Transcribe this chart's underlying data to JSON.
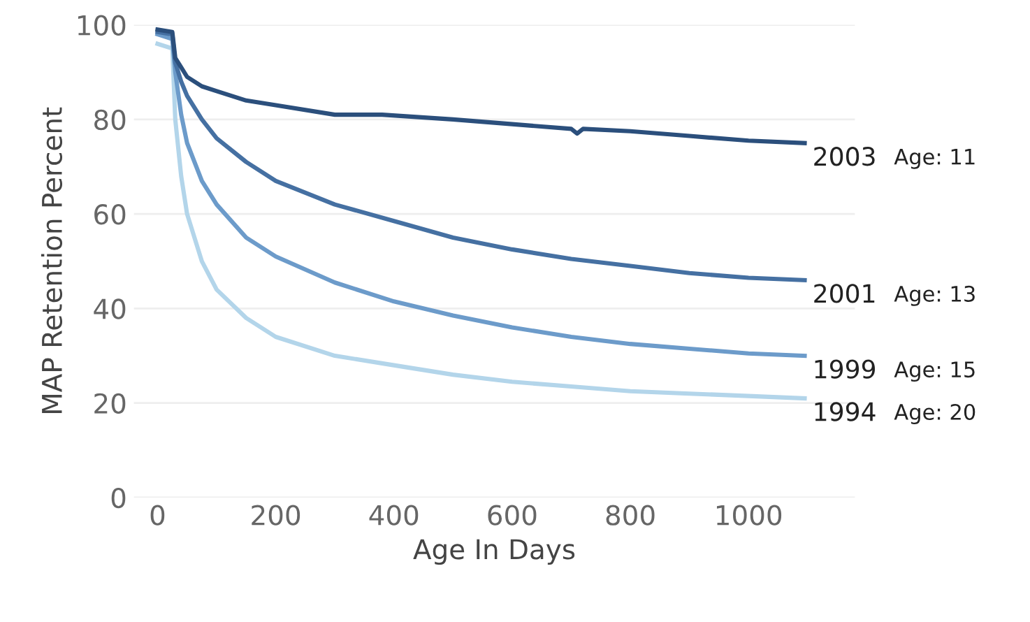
{
  "chart_data": {
    "type": "line",
    "xlabel": "Age In Days",
    "ylabel": "MAP Retention Percent",
    "xlim": [
      -40,
      1180
    ],
    "ylim": [
      0,
      100
    ],
    "xticks": [
      0,
      200,
      400,
      600,
      800,
      1000
    ],
    "yticks": [
      0,
      20,
      40,
      60,
      80,
      100
    ],
    "grid": "y",
    "legend": false,
    "series": [
      {
        "name": "1994",
        "color": "#b3d5ea",
        "x": [
          0,
          25,
          30,
          40,
          50,
          75,
          100,
          150,
          200,
          300,
          400,
          500,
          600,
          700,
          800,
          900,
          1000,
          1095
        ],
        "values": [
          96,
          95,
          80,
          68,
          60,
          50,
          44,
          38,
          34,
          30,
          28,
          26,
          24.5,
          23.5,
          22.5,
          22,
          21.5,
          21
        ]
      },
      {
        "name": "1999",
        "color": "#6c9bca",
        "x": [
          0,
          25,
          30,
          40,
          50,
          75,
          100,
          150,
          200,
          300,
          400,
          500,
          600,
          700,
          800,
          900,
          1000,
          1095
        ],
        "values": [
          98,
          97,
          90,
          81,
          75,
          67,
          62,
          55,
          51,
          45.5,
          41.5,
          38.5,
          36,
          34,
          32.5,
          31.5,
          30.5,
          30
        ]
      },
      {
        "name": "2001",
        "color": "#4570a2",
        "x": [
          0,
          25,
          30,
          40,
          50,
          75,
          100,
          150,
          200,
          300,
          400,
          500,
          600,
          700,
          800,
          900,
          1000,
          1095
        ],
        "values": [
          98.5,
          98,
          92,
          88,
          85,
          80,
          76,
          71,
          67,
          62,
          58.5,
          55,
          52.5,
          50.5,
          49,
          47.5,
          46.5,
          46
        ]
      },
      {
        "name": "2003",
        "color": "#2b4f7c",
        "x": [
          0,
          25,
          30,
          40,
          50,
          75,
          100,
          150,
          200,
          300,
          380,
          500,
          600,
          700,
          710,
          720,
          800,
          900,
          1000,
          1095
        ],
        "values": [
          99,
          98.5,
          93,
          91,
          89,
          87,
          86,
          84,
          83,
          81,
          81,
          80,
          79,
          78,
          77,
          78,
          77.5,
          76.5,
          75.5,
          75
        ]
      }
    ],
    "annotations": [
      "Age: 20",
      "Age: 15",
      "Age: 13",
      "Age: 11"
    ]
  }
}
